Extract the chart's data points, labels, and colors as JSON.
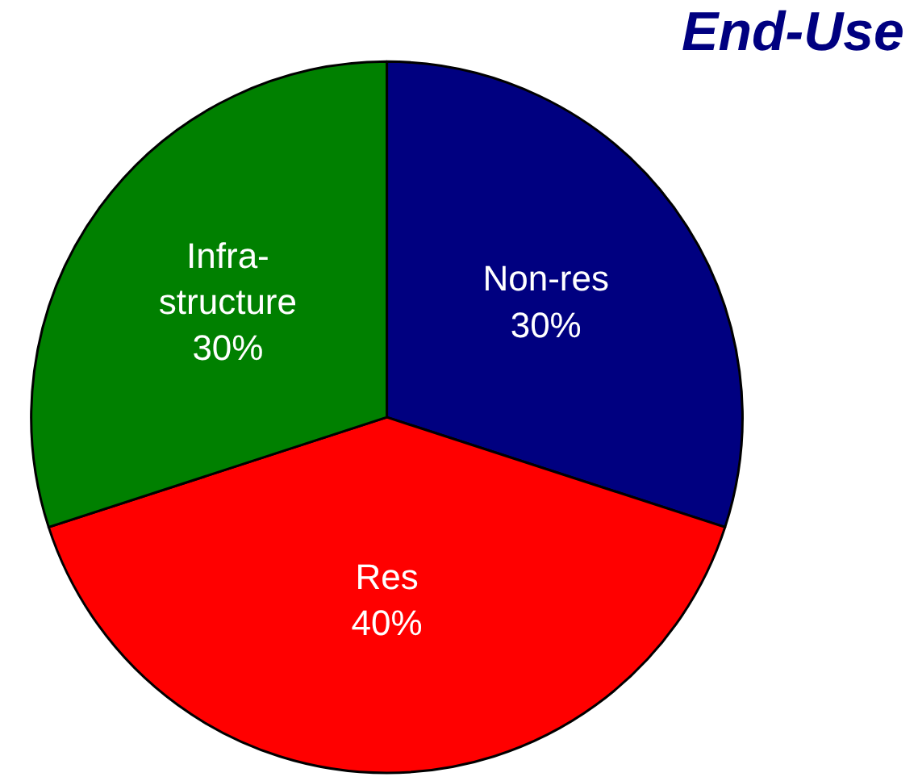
{
  "chart_data": {
    "type": "pie",
    "title": "End-Use",
    "categories": [
      "Non-res",
      "Res",
      "Infra-\nstructure"
    ],
    "values": [
      30,
      40,
      30
    ],
    "value_labels": [
      "30%",
      "40%",
      "30%"
    ],
    "colors": [
      "#000080",
      "#ff0000",
      "#008000"
    ],
    "legend": false
  }
}
